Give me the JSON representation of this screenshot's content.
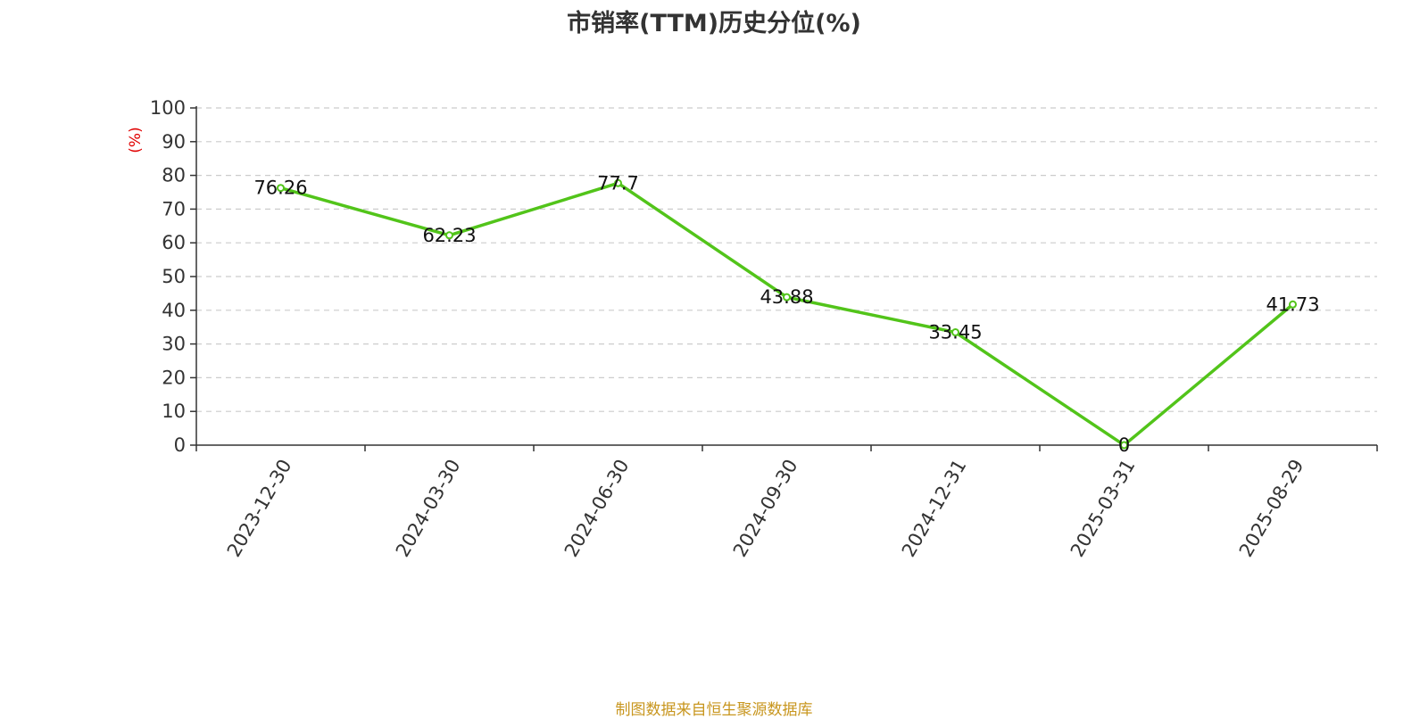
{
  "title": "市销率(TTM)历史分位(%)",
  "source": "制图数据来自恒生聚源数据库",
  "colors": {
    "line": "#52c41a",
    "grid": "#cccccc",
    "axis": "#333333",
    "unit": "#e00000",
    "source": "#c8961e"
  },
  "chart_data": {
    "type": "line",
    "title": "市销率(TTM)历史分位(%)",
    "ylabel": "(%)",
    "xlabel": "",
    "categories": [
      "2023-12-30",
      "2024-03-30",
      "2024-06-30",
      "2024-09-30",
      "2024-12-31",
      "2025-03-31",
      "2025-08-29"
    ],
    "series": [
      {
        "values": [
          76.26,
          62.23,
          77.7,
          43.88,
          33.45,
          0,
          41.73
        ]
      }
    ],
    "data_labels": [
      "76.26",
      "62.23",
      "77.7",
      "43.88",
      "33.45",
      "0",
      "41.73"
    ],
    "ylim": [
      0,
      100
    ],
    "yticks": [
      0,
      10,
      20,
      30,
      40,
      50,
      60,
      70,
      80,
      90,
      100
    ],
    "grid": true,
    "legend": "none"
  }
}
